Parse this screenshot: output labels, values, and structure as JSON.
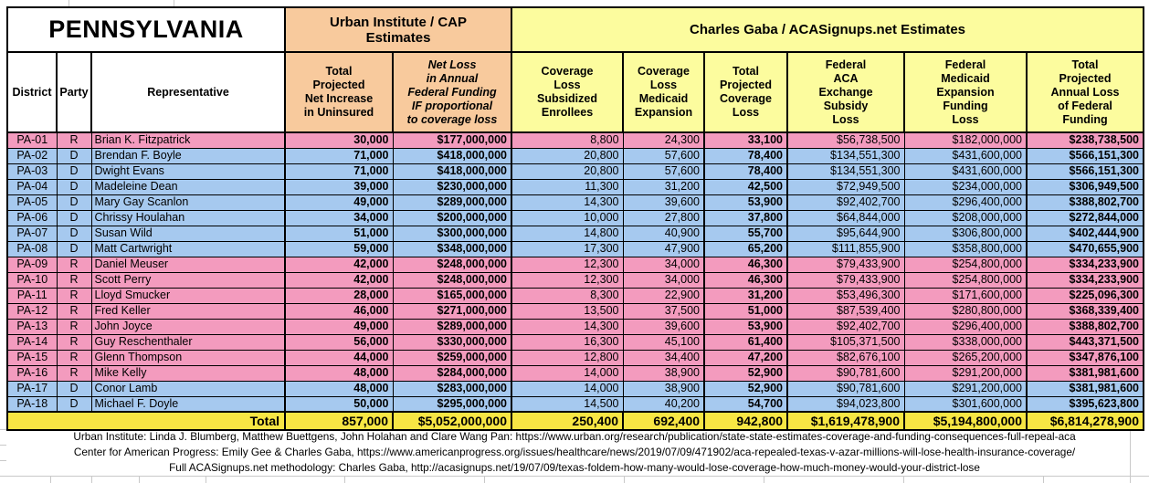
{
  "title": "PENNSYLVANIA",
  "groups": {
    "urban": "Urban Institute / CAP\nEstimates",
    "gaba": "Charles Gaba / ACASignups.net Estimates"
  },
  "columns": {
    "district": "District",
    "party": "Party",
    "representative": "Representative",
    "net_increase_uninsured": "Total\nProjected\nNet Increase\nin Uninsured",
    "net_loss_federal_funding": "Net Loss\nin Annual\nFederal Funding\nIF proportional\nto coverage loss",
    "coverage_loss_subsidized": "Coverage\nLoss\nSubsidized\nEnrollees",
    "coverage_loss_medicaid": "Coverage\nLoss\nMedicaid\nExpansion",
    "total_coverage_loss": "Total\nProjected\nCoverage\nLoss",
    "federal_aca_exchange_subsidy_loss": "Federal\nACA\nExchange\nSubsidy\nLoss",
    "federal_medicaid_expansion_funding_loss": "Federal\nMedicaid\nExpansion\nFunding\nLoss",
    "total_annual_loss_federal_funding": "Total\nProjected\nAnnual Loss\nof Federal\nFunding"
  },
  "rows": [
    {
      "district": "PA-01",
      "party": "R",
      "representative": "Brian K. Fitzpatrick",
      "values": [
        "30,000",
        "$177,000,000",
        "8,800",
        "24,300",
        "33,100",
        "$56,738,500",
        "$182,000,000",
        "$238,738,500"
      ]
    },
    {
      "district": "PA-02",
      "party": "D",
      "representative": "Brendan F. Boyle",
      "values": [
        "71,000",
        "$418,000,000",
        "20,800",
        "57,600",
        "78,400",
        "$134,551,300",
        "$431,600,000",
        "$566,151,300"
      ]
    },
    {
      "district": "PA-03",
      "party": "D",
      "representative": "Dwight Evans",
      "values": [
        "71,000",
        "$418,000,000",
        "20,800",
        "57,600",
        "78,400",
        "$134,551,300",
        "$431,600,000",
        "$566,151,300"
      ]
    },
    {
      "district": "PA-04",
      "party": "D",
      "representative": "Madeleine Dean",
      "values": [
        "39,000",
        "$230,000,000",
        "11,300",
        "31,200",
        "42,500",
        "$72,949,500",
        "$234,000,000",
        "$306,949,500"
      ]
    },
    {
      "district": "PA-05",
      "party": "D",
      "representative": "Mary Gay Scanlon",
      "values": [
        "49,000",
        "$289,000,000",
        "14,300",
        "39,600",
        "53,900",
        "$92,402,700",
        "$296,400,000",
        "$388,802,700"
      ]
    },
    {
      "district": "PA-06",
      "party": "D",
      "representative": "Chrissy Houlahan",
      "values": [
        "34,000",
        "$200,000,000",
        "10,000",
        "27,800",
        "37,800",
        "$64,844,000",
        "$208,000,000",
        "$272,844,000"
      ]
    },
    {
      "district": "PA-07",
      "party": "D",
      "representative": "Susan Wild",
      "values": [
        "51,000",
        "$300,000,000",
        "14,800",
        "40,900",
        "55,700",
        "$95,644,900",
        "$306,800,000",
        "$402,444,900"
      ]
    },
    {
      "district": "PA-08",
      "party": "D",
      "representative": "Matt Cartwright",
      "values": [
        "59,000",
        "$348,000,000",
        "17,300",
        "47,900",
        "65,200",
        "$111,855,900",
        "$358,800,000",
        "$470,655,900"
      ]
    },
    {
      "district": "PA-09",
      "party": "R",
      "representative": "Daniel Meuser",
      "values": [
        "42,000",
        "$248,000,000",
        "12,300",
        "34,000",
        "46,300",
        "$79,433,900",
        "$254,800,000",
        "$334,233,900"
      ]
    },
    {
      "district": "PA-10",
      "party": "R",
      "representative": "Scott Perry",
      "values": [
        "42,000",
        "$248,000,000",
        "12,300",
        "34,000",
        "46,300",
        "$79,433,900",
        "$254,800,000",
        "$334,233,900"
      ]
    },
    {
      "district": "PA-11",
      "party": "R",
      "representative": "Lloyd Smucker",
      "values": [
        "28,000",
        "$165,000,000",
        "8,300",
        "22,900",
        "31,200",
        "$53,496,300",
        "$171,600,000",
        "$225,096,300"
      ]
    },
    {
      "district": "PA-12",
      "party": "R",
      "representative": "Fred Keller",
      "values": [
        "46,000",
        "$271,000,000",
        "13,500",
        "37,500",
        "51,000",
        "$87,539,400",
        "$280,800,000",
        "$368,339,400"
      ]
    },
    {
      "district": "PA-13",
      "party": "R",
      "representative": "John Joyce",
      "values": [
        "49,000",
        "$289,000,000",
        "14,300",
        "39,600",
        "53,900",
        "$92,402,700",
        "$296,400,000",
        "$388,802,700"
      ]
    },
    {
      "district": "PA-14",
      "party": "R",
      "representative": "Guy Reschenthaler",
      "values": [
        "56,000",
        "$330,000,000",
        "16,300",
        "45,100",
        "61,400",
        "$105,371,500",
        "$338,000,000",
        "$443,371,500"
      ]
    },
    {
      "district": "PA-15",
      "party": "R",
      "representative": "Glenn Thompson",
      "values": [
        "44,000",
        "$259,000,000",
        "12,800",
        "34,400",
        "47,200",
        "$82,676,100",
        "$265,200,000",
        "$347,876,100"
      ]
    },
    {
      "district": "PA-16",
      "party": "R",
      "representative": "Mike Kelly",
      "values": [
        "48,000",
        "$284,000,000",
        "14,000",
        "38,900",
        "52,900",
        "$90,781,600",
        "$291,200,000",
        "$381,981,600"
      ]
    },
    {
      "district": "PA-17",
      "party": "D",
      "representative": "Conor Lamb",
      "values": [
        "48,000",
        "$283,000,000",
        "14,000",
        "38,900",
        "52,900",
        "$90,781,600",
        "$291,200,000",
        "$381,981,600"
      ]
    },
    {
      "district": "PA-18",
      "party": "D",
      "representative": "Michael F. Doyle",
      "values": [
        "50,000",
        "$295,000,000",
        "14,500",
        "40,200",
        "54,700",
        "$94,023,800",
        "$301,600,000",
        "$395,623,800"
      ]
    }
  ],
  "total": {
    "label": "Total",
    "values": [
      "857,000",
      "$5,052,000,000",
      "250,400",
      "692,400",
      "942,800",
      "$1,619,478,900",
      "$5,194,800,000",
      "$6,814,278,900"
    ]
  },
  "footnotes": [
    "Urban Institute: Linda J. Blumberg, Matthew Buettgens, John Holahan and Clare Wang Pan: https://www.urban.org/research/publication/state-state-estimates-coverage-and-funding-consequences-full-repeal-aca",
    "Center for American Progress: Emily Gee & Charles Gaba, https://www.americanprogress.org/issues/healthcare/news/2019/07/09/471902/aca-repealed-texas-v-azar-millions-will-lose-health-insurance-coverage/",
    "Full ACASignups.net methodology: Charles Gaba, http://acasignups.net/19/07/09/texas-foldem-how-many-would-lose-coverage-how-much-money-would-your-district-lose"
  ],
  "colors": {
    "republican_row": "#f39bbe",
    "democrat_row": "#a6c9ef",
    "urban_header": "#f8ca9d",
    "gaba_header": "#fcfc9e",
    "total_row": "#f7e644",
    "border": "#000000"
  }
}
